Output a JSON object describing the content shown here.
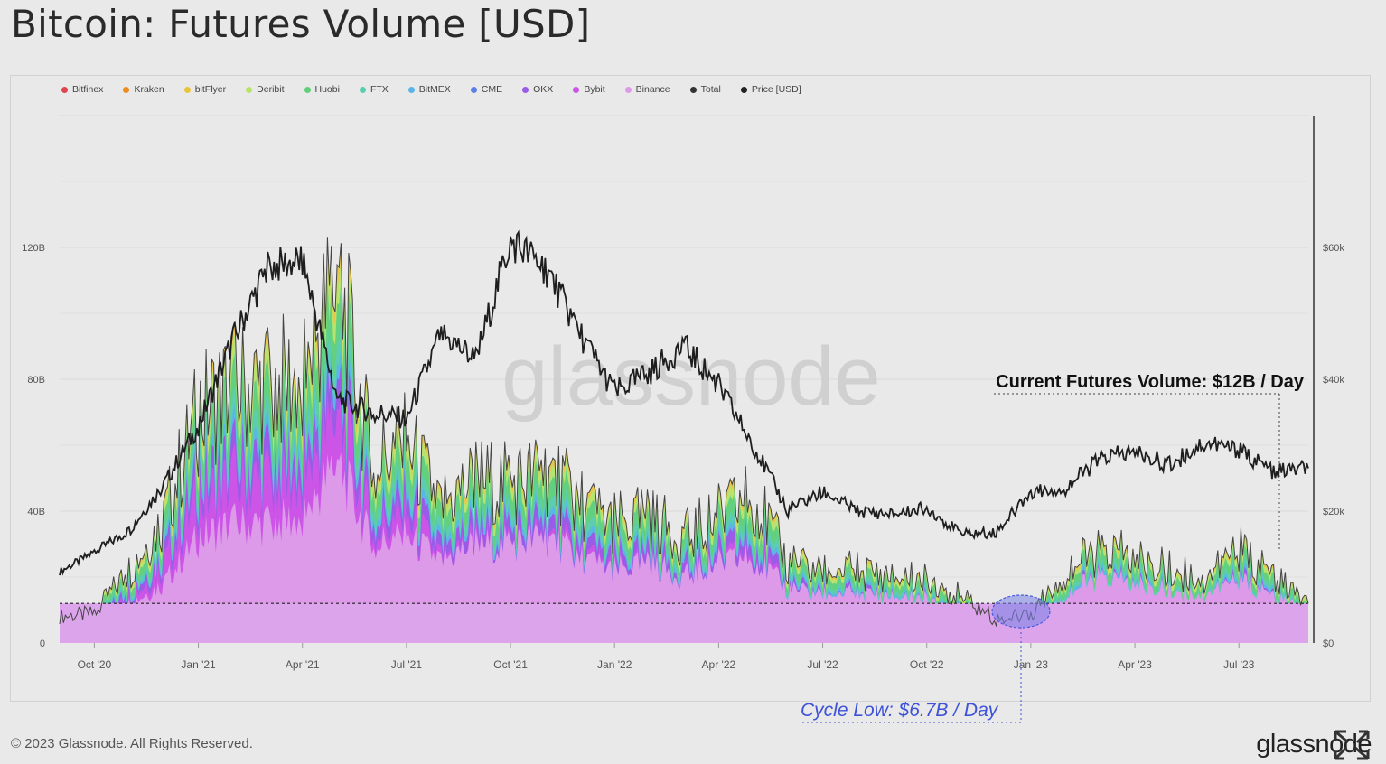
{
  "title": "Bitcoin: Futures Volume [USD]",
  "footer": "© 2023 Glassnode. All Rights Reserved.",
  "brand": "glassnode",
  "watermark": "glassnode",
  "legend": [
    {
      "name": "Bitfinex",
      "color": "#e0454f"
    },
    {
      "name": "Kraken",
      "color": "#ef8a1f"
    },
    {
      "name": "bitFlyer",
      "color": "#e8c43a"
    },
    {
      "name": "Deribit",
      "color": "#b7e36b"
    },
    {
      "name": "Huobi",
      "color": "#5fd07a"
    },
    {
      "name": "FTX",
      "color": "#58cfae"
    },
    {
      "name": "BitMEX",
      "color": "#58b6e6"
    },
    {
      "name": "CME",
      "color": "#5b7fe6"
    },
    {
      "name": "OKX",
      "color": "#9a5be6"
    },
    {
      "name": "Bybit",
      "color": "#cc55e8"
    },
    {
      "name": "Binance",
      "color": "#dc9ae8"
    },
    {
      "name": "Total",
      "color": "#333333"
    },
    {
      "name": "Price [USD]",
      "color": "#222222"
    }
  ],
  "annotations": {
    "current": "Current Futures Volume: $12B / Day",
    "cycle_low": "Cycle Low: $6.7B / Day"
  },
  "chart_data": {
    "type": "area",
    "title": "Bitcoin: Futures Volume [USD]",
    "x_ticks": [
      "Oct '20",
      "Jan '21",
      "Apr '21",
      "Jul '21",
      "Oct '21",
      "Jan '22",
      "Apr '22",
      "Jul '22",
      "Oct '22",
      "Jan '23",
      "Apr '23",
      "Jul '23"
    ],
    "y_left_ticks": [
      "0",
      "40B",
      "80B",
      "120B"
    ],
    "y_right_ticks": [
      "$0",
      "$20k",
      "$40k",
      "$60k"
    ],
    "y_left_lim": [
      0,
      160
    ],
    "y_right_lim": [
      0,
      80000
    ],
    "reference_line_B": 12,
    "x": [
      "2020-09",
      "2020-10",
      "2020-11",
      "2020-12",
      "2021-01",
      "2021-02",
      "2021-03",
      "2021-04",
      "2021-05",
      "2021-06",
      "2021-07",
      "2021-08",
      "2021-09",
      "2021-10",
      "2021-11",
      "2021-12",
      "2022-01",
      "2022-02",
      "2022-03",
      "2022-04",
      "2022-05",
      "2022-06",
      "2022-07",
      "2022-08",
      "2022-09",
      "2022-10",
      "2022-11",
      "2022-12",
      "2023-01",
      "2023-02",
      "2023-03",
      "2023-04",
      "2023-05",
      "2023-06",
      "2023-07",
      "2023-08",
      "2023-09"
    ],
    "series": [
      {
        "name": "Total",
        "unit": "B USD",
        "values": [
          8,
          9,
          22,
          38,
          70,
          78,
          78,
          80,
          112,
          55,
          60,
          42,
          50,
          48,
          52,
          43,
          36,
          38,
          32,
          38,
          45,
          24,
          22,
          22,
          20,
          20,
          14,
          7,
          9,
          22,
          28,
          26,
          22,
          20,
          28,
          20,
          12
        ]
      },
      {
        "name": "Binance",
        "unit": "B USD",
        "values": [
          5,
          5,
          12,
          18,
          32,
          36,
          36,
          38,
          55,
          30,
          32,
          25,
          30,
          30,
          32,
          26,
          22,
          24,
          20,
          24,
          26,
          16,
          15,
          15,
          14,
          14,
          10,
          6,
          7,
          15,
          20,
          18,
          16,
          15,
          19,
          14,
          10
        ]
      },
      {
        "name": "Price [USD]",
        "unit": "USD",
        "values": [
          10800,
          13800,
          17000,
          24000,
          33000,
          46000,
          57000,
          58000,
          37000,
          35000,
          34000,
          47000,
          43000,
          61000,
          57000,
          47000,
          38000,
          41000,
          45000,
          39000,
          30000,
          20000,
          23000,
          20000,
          19500,
          20500,
          16500,
          16800,
          23000,
          23500,
          28000,
          29000,
          27000,
          30500,
          29200,
          26000,
          26500
        ]
      }
    ]
  }
}
